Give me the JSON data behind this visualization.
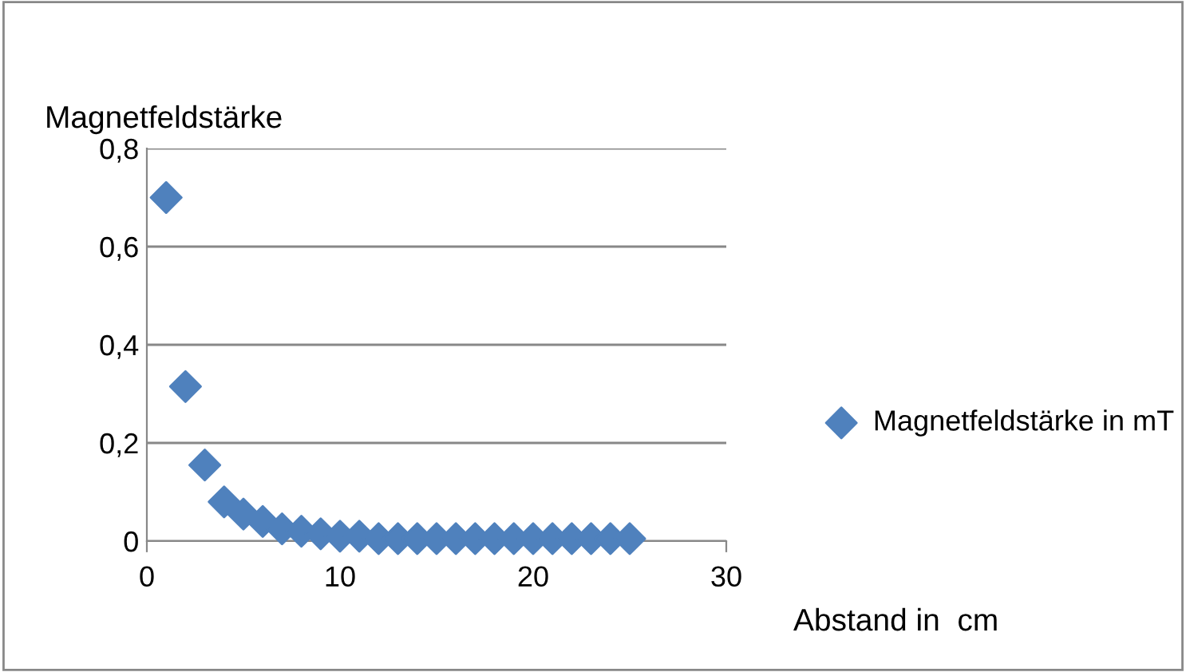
{
  "chart_data": {
    "type": "scatter",
    "ylabel": "Magnetfeldstärke",
    "xlabel": "Abstand in  cm",
    "x": [
      1,
      2,
      3,
      4,
      5,
      6,
      7,
      8,
      9,
      10,
      11,
      12,
      13,
      14,
      15,
      16,
      17,
      18,
      19,
      20,
      21,
      22,
      23,
      24,
      25
    ],
    "series": [
      {
        "name": "Magnetfeldstärke in mT",
        "color": "#4f81bd",
        "values": [
          0.7,
          0.315,
          0.155,
          0.08,
          0.055,
          0.04,
          0.025,
          0.02,
          0.015,
          0.01,
          0.01,
          0.005,
          0.005,
          0.005,
          0.005,
          0.005,
          0.005,
          0.005,
          0.005,
          0.005,
          0.005,
          0.005,
          0.005,
          0.005,
          0.005
        ]
      }
    ],
    "xlim": [
      0,
      30
    ],
    "xticks": [
      0,
      10,
      20,
      30
    ],
    "ylim": [
      0,
      0.8
    ],
    "yticks": [
      {
        "value": 0,
        "label": "0"
      },
      {
        "value": 0.2,
        "label": "0,2"
      },
      {
        "value": 0.4,
        "label": "0,4"
      },
      {
        "value": 0.6,
        "label": "0,6"
      },
      {
        "value": 0.8,
        "label": "0,8"
      }
    ],
    "grid": "y",
    "legend": "right",
    "marker": "diamond"
  }
}
